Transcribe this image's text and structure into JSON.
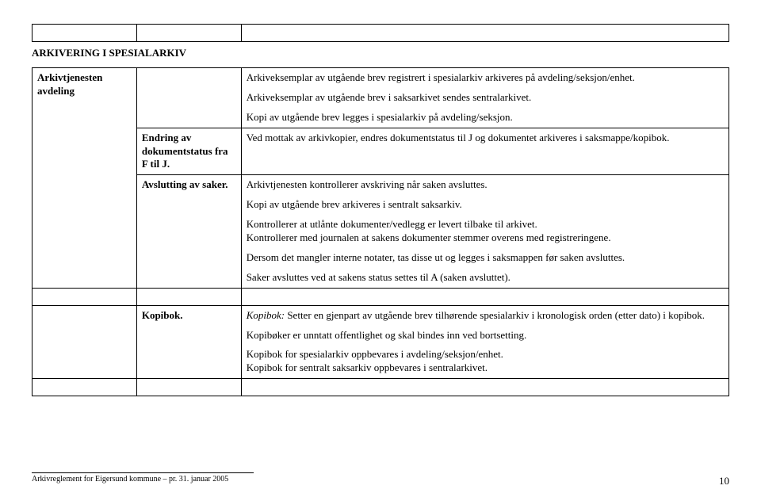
{
  "heading": "ARKIVERING I SPESIALARKIV",
  "rows": {
    "r1": {
      "c1": "Arkivtjenesten avdeling",
      "c3p1": "Arkiveksemplar av utgående brev registrert i spesialarkiv arkiveres på avdeling/seksjon/enhet.",
      "c3p2": "Arkiveksemplar av utgående brev i  saksarkivet  sendes sentralarkivet.",
      "c3p3": "Kopi av utgående brev legges i spesialarkiv på avdeling/seksjon."
    },
    "r2": {
      "c2": "Endring av dokumentstatus fra F til J.",
      "c3": "Ved mottak av arkivkopier, endres dokumentstatus til J og dokumentet arkiveres i saksmappe/kopibok."
    },
    "r3": {
      "c2": "Avslutting av saker.",
      "c3p1": "Arkivtjenesten kontrollerer avskriving når saken avsluttes.",
      "c3p2": "Kopi av utgående brev arkiveres i sentralt saksarkiv.",
      "c3p3": "Kontrollerer at utlånte dokumenter/vedlegg er levert tilbake til  arkivet.",
      "c3p4": "Kontrollerer med journalen at sakens dokumenter stemmer overens med registreringene.",
      "c3p5": "Dersom det mangler interne notater, tas disse ut og legges i saksmappen før saken avsluttes.",
      "c3p6": "Saker avsluttes ved at sakens status settes til A (saken avsluttet)."
    },
    "r4": {
      "c2": "Kopibok.",
      "c3p1a": "Kopibok:",
      "c3p1b": " Setter en gjenpart av utgående brev tilhørende spesialarkiv i kronologisk orden (etter dato) i kopibok.",
      "c3p2": "Kopibøker er unntatt offentlighet og skal bindes inn ved bortsetting.",
      "c3p3": "Kopibok for spesialarkiv oppbevares i avdeling/seksjon/enhet.",
      "c3p4": "Kopibok for sentralt saksarkiv oppbevares i sentralarkivet."
    }
  },
  "footer": {
    "text": "Arkivreglement for Eigersund kommune – pr. 31. januar 2005",
    "page": "10"
  }
}
